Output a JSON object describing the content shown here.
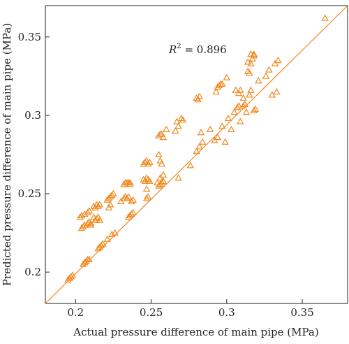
{
  "chart_data": {
    "type": "scatter",
    "xlabel": "Actual pressure difference of main pipe (MPa)",
    "ylabel": "Predicted pressure difference of main pipe (MPa)",
    "xlim": [
      0.18,
      0.38
    ],
    "ylim": [
      0.18,
      0.37
    ],
    "x_ticks": [
      0.2,
      0.25,
      0.3,
      0.35
    ],
    "x_tick_labels": [
      "0.2",
      "0.25",
      "0.3",
      "0.35"
    ],
    "y_ticks": [
      0.2,
      0.25,
      0.3,
      0.35
    ],
    "y_tick_labels": [
      "0.2",
      "0.25",
      "0.3",
      "0.35"
    ],
    "grid": false,
    "legend": "none",
    "annotation": {
      "r_symbol": "R",
      "r_exponent": "2",
      "r_value": " = 0.896"
    },
    "fit_line": {
      "x": [
        0.18,
        0.38
      ],
      "y": [
        0.18,
        0.38
      ]
    },
    "marker": "open-triangle",
    "color": "#F0891D",
    "series": [
      {
        "points": [
          [
            0.195,
            0.195
          ],
          [
            0.196,
            0.196
          ],
          [
            0.197,
            0.197
          ],
          [
            0.198,
            0.198
          ],
          [
            0.205,
            0.205
          ],
          [
            0.206,
            0.206
          ],
          [
            0.207,
            0.207
          ],
          [
            0.208,
            0.208
          ],
          [
            0.209,
            0.208
          ],
          [
            0.215,
            0.215
          ],
          [
            0.216,
            0.216
          ],
          [
            0.217,
            0.217
          ],
          [
            0.218,
            0.218
          ],
          [
            0.221,
            0.221
          ],
          [
            0.224,
            0.224
          ],
          [
            0.226,
            0.225
          ],
          [
            0.235,
            0.235
          ],
          [
            0.236,
            0.236
          ],
          [
            0.237,
            0.237
          ],
          [
            0.238,
            0.238
          ],
          [
            0.247,
            0.247
          ],
          [
            0.248,
            0.248
          ],
          [
            0.255,
            0.255
          ],
          [
            0.256,
            0.256
          ],
          [
            0.257,
            0.257
          ],
          [
            0.258,
            0.258
          ],
          [
            0.268,
            0.26
          ],
          [
            0.276,
            0.268
          ],
          [
            0.28,
            0.277
          ],
          [
            0.282,
            0.28
          ],
          [
            0.284,
            0.283
          ],
          [
            0.283,
            0.289
          ],
          [
            0.289,
            0.291
          ],
          [
            0.292,
            0.284
          ],
          [
            0.294,
            0.286
          ],
          [
            0.297,
            0.293
          ],
          [
            0.301,
            0.298
          ],
          [
            0.303,
            0.291
          ],
          [
            0.305,
            0.302
          ],
          [
            0.308,
            0.306
          ],
          [
            0.309,
            0.296
          ],
          [
            0.311,
            0.311
          ],
          [
            0.313,
            0.302
          ],
          [
            0.315,
            0.313
          ],
          [
            0.316,
            0.316
          ],
          [
            0.318,
            0.303
          ],
          [
            0.319,
            0.304
          ],
          [
            0.321,
            0.322
          ],
          [
            0.326,
            0.325
          ],
          [
            0.328,
            0.329
          ],
          [
            0.33,
            0.313
          ],
          [
            0.332,
            0.333
          ],
          [
            0.333,
            0.315
          ],
          [
            0.334,
            0.335
          ],
          [
            0.365,
            0.362
          ],
          [
            0.306,
            0.316
          ],
          [
            0.308,
            0.314
          ],
          [
            0.309,
            0.316
          ],
          [
            0.311,
            0.306
          ],
          [
            0.312,
            0.307
          ],
          [
            0.307,
            0.305
          ],
          [
            0.314,
            0.328
          ],
          [
            0.315,
            0.327
          ],
          [
            0.3,
            0.324
          ],
          [
            0.299,
            0.283
          ],
          [
            0.28,
            0.311
          ],
          [
            0.281,
            0.31
          ],
          [
            0.282,
            0.312
          ],
          [
            0.293,
            0.315
          ],
          [
            0.294,
            0.318
          ],
          [
            0.295,
            0.319
          ],
          [
            0.296,
            0.32
          ],
          [
            0.297,
            0.32
          ],
          [
            0.317,
            0.336
          ],
          [
            0.318,
            0.338
          ],
          [
            0.316,
            0.339
          ],
          [
            0.318,
            0.339
          ],
          [
            0.314,
            0.334
          ],
          [
            0.316,
            0.333
          ],
          [
            0.266,
            0.29
          ],
          [
            0.267,
            0.296
          ],
          [
            0.268,
            0.293
          ],
          [
            0.27,
            0.298
          ],
          [
            0.271,
            0.297
          ],
          [
            0.255,
            0.287
          ],
          [
            0.256,
            0.288
          ],
          [
            0.258,
            0.286
          ],
          [
            0.257,
            0.288
          ],
          [
            0.26,
            0.291
          ],
          [
            0.245,
            0.269
          ],
          [
            0.246,
            0.27
          ],
          [
            0.247,
            0.271
          ],
          [
            0.248,
            0.269
          ],
          [
            0.249,
            0.27
          ],
          [
            0.255,
            0.275
          ],
          [
            0.256,
            0.271
          ],
          [
            0.257,
            0.269
          ],
          [
            0.258,
            0.262
          ],
          [
            0.256,
            0.26
          ],
          [
            0.245,
            0.259
          ],
          [
            0.246,
            0.258
          ],
          [
            0.247,
            0.26
          ],
          [
            0.248,
            0.259
          ],
          [
            0.249,
            0.258
          ],
          [
            0.232,
            0.256
          ],
          [
            0.233,
            0.257
          ],
          [
            0.234,
            0.257
          ],
          [
            0.235,
            0.257
          ],
          [
            0.236,
            0.256
          ],
          [
            0.232,
            0.247
          ],
          [
            0.233,
            0.248
          ],
          [
            0.234,
            0.247
          ],
          [
            0.235,
            0.248
          ],
          [
            0.23,
            0.245
          ],
          [
            0.222,
            0.247
          ],
          [
            0.223,
            0.248
          ],
          [
            0.224,
            0.249
          ],
          [
            0.221,
            0.246
          ],
          [
            0.225,
            0.25
          ],
          [
            0.212,
            0.242
          ],
          [
            0.213,
            0.241
          ],
          [
            0.214,
            0.243
          ],
          [
            0.215,
            0.242
          ],
          [
            0.216,
            0.243
          ],
          [
            0.212,
            0.235
          ],
          [
            0.213,
            0.233
          ],
          [
            0.214,
            0.234
          ],
          [
            0.215,
            0.235
          ],
          [
            0.216,
            0.233
          ],
          [
            0.203,
            0.235
          ],
          [
            0.204,
            0.236
          ],
          [
            0.206,
            0.237
          ],
          [
            0.208,
            0.238
          ],
          [
            0.209,
            0.239
          ],
          [
            0.204,
            0.228
          ],
          [
            0.205,
            0.229
          ],
          [
            0.206,
            0.23
          ],
          [
            0.208,
            0.231
          ],
          [
            0.209,
            0.232
          ],
          [
            0.21,
            0.231
          ],
          [
            0.21,
            0.23
          ],
          [
            0.222,
            0.241
          ],
          [
            0.223,
            0.243
          ],
          [
            0.236,
            0.257
          ],
          [
            0.237,
            0.245
          ],
          [
            0.238,
            0.246
          ],
          [
            0.254,
            0.257
          ],
          [
            0.256,
            0.256
          ],
          [
            0.247,
            0.253
          ]
        ]
      }
    ]
  }
}
